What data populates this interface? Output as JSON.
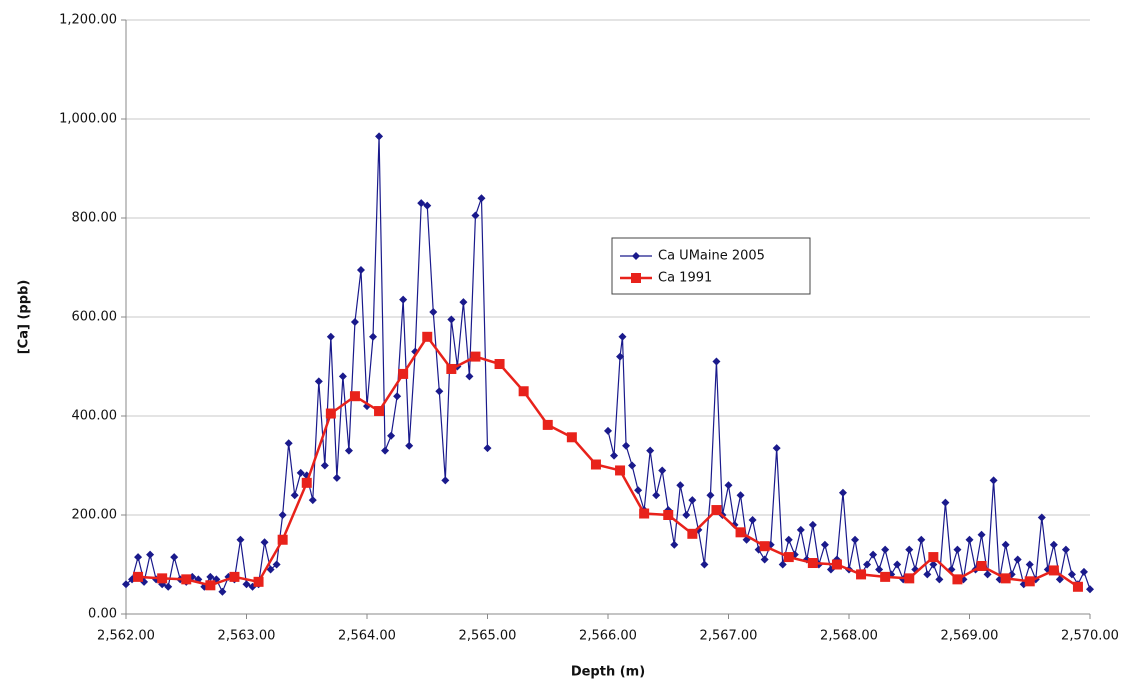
{
  "chart_data": {
    "type": "line",
    "x_label": "Depth (m)",
    "y_label": "[Ca] (ppb)",
    "xlim": [
      2562,
      2570
    ],
    "ylim": [
      0,
      1200
    ],
    "xticks": [
      {
        "value": 2562,
        "label": "2,562.00"
      },
      {
        "value": 2563,
        "label": "2,563.00"
      },
      {
        "value": 2564,
        "label": "2,564.00"
      },
      {
        "value": 2565,
        "label": "2,565.00"
      },
      {
        "value": 2566,
        "label": "2,566.00"
      },
      {
        "value": 2567,
        "label": "2,567.00"
      },
      {
        "value": 2568,
        "label": "2,568.00"
      },
      {
        "value": 2569,
        "label": "2,569.00"
      },
      {
        "value": 2570,
        "label": "2,570.00"
      }
    ],
    "yticks": [
      {
        "value": 0,
        "label": "0.00"
      },
      {
        "value": 200,
        "label": "200.00"
      },
      {
        "value": 400,
        "label": "400.00"
      },
      {
        "value": 600,
        "label": "600.00"
      },
      {
        "value": 800,
        "label": "800.00"
      },
      {
        "value": 1000,
        "label": "1,000.00"
      },
      {
        "value": 1200,
        "label": "1,200.00"
      }
    ],
    "grid": true,
    "series": [
      {
        "name": "Ca UMaine 2005",
        "color": "#1a1a8c",
        "marker": "diamond",
        "x": [
          2562.0,
          2562.05,
          2562.1,
          2562.15,
          2562.2,
          2562.25,
          2562.3,
          2562.35,
          2562.4,
          2562.45,
          2562.5,
          2562.55,
          2562.6,
          2562.65,
          2562.7,
          2562.75,
          2562.8,
          2562.85,
          2562.9,
          2562.95,
          2563.0,
          2563.05,
          2563.1,
          2563.15,
          2563.2,
          2563.25,
          2563.3,
          2563.35,
          2563.4,
          2563.45,
          2563.5,
          2563.55,
          2563.6,
          2563.65,
          2563.7,
          2563.75,
          2563.8,
          2563.85,
          2563.9,
          2563.95,
          2564.0,
          2564.05,
          2564.1,
          2564.15,
          2564.2,
          2564.25,
          2564.3,
          2564.35,
          2564.4,
          2564.45,
          2564.5,
          2564.55,
          2564.6,
          2564.65,
          2564.7,
          2564.75,
          2564.8,
          2564.85,
          2564.9,
          2564.95,
          2565.0,
          2565.5,
          2566.0,
          2566.05,
          2566.1,
          2566.12,
          2566.15,
          2566.2,
          2566.25,
          2566.3,
          2566.35,
          2566.4,
          2566.45,
          2566.5,
          2566.55,
          2566.6,
          2566.65,
          2566.7,
          2566.75,
          2566.8,
          2566.85,
          2566.9,
          2566.95,
          2567.0,
          2567.05,
          2567.1,
          2567.15,
          2567.2,
          2567.25,
          2567.3,
          2567.35,
          2567.4,
          2567.45,
          2567.5,
          2567.55,
          2567.6,
          2567.65,
          2567.7,
          2567.75,
          2567.8,
          2567.85,
          2567.9,
          2567.95,
          2568.0,
          2568.05,
          2568.1,
          2568.15,
          2568.2,
          2568.25,
          2568.3,
          2568.35,
          2568.4,
          2568.45,
          2568.5,
          2568.55,
          2568.6,
          2568.65,
          2568.7,
          2568.75,
          2568.8,
          2568.85,
          2568.9,
          2568.95,
          2569.0,
          2569.05,
          2569.1,
          2569.15,
          2569.2,
          2569.25,
          2569.3,
          2569.35,
          2569.4,
          2569.45,
          2569.5,
          2569.55,
          2569.6,
          2569.65,
          2569.7,
          2569.75,
          2569.8,
          2569.85,
          2569.9,
          2569.95,
          2570.0
        ],
        "values": [
          60,
          70,
          115,
          65,
          120,
          70,
          60,
          55,
          115,
          70,
          65,
          75,
          70,
          55,
          75,
          70,
          45,
          75,
          70,
          150,
          60,
          55,
          60,
          145,
          90,
          100,
          200,
          345,
          240,
          285,
          280,
          230,
          470,
          300,
          560,
          275,
          480,
          330,
          590,
          695,
          420,
          560,
          965,
          330,
          360,
          440,
          635,
          340,
          530,
          830,
          825,
          610,
          450,
          270,
          595,
          500,
          630,
          480,
          805,
          840,
          335,
          null,
          370,
          320,
          520,
          560,
          340,
          300,
          250,
          210,
          330,
          240,
          290,
          210,
          140,
          260,
          200,
          230,
          170,
          100,
          240,
          510,
          200,
          260,
          180,
          240,
          150,
          190,
          130,
          110,
          140,
          335,
          100,
          150,
          120,
          170,
          110,
          180,
          100,
          140,
          90,
          110,
          245,
          90,
          150,
          80,
          100,
          120,
          90,
          130,
          80,
          100,
          70,
          130,
          90,
          150,
          80,
          100,
          70,
          225,
          90,
          130,
          70,
          150,
          90,
          160,
          80,
          270,
          70,
          140,
          80,
          110,
          60,
          100,
          70,
          195,
          90,
          140,
          70,
          130,
          80,
          60,
          85,
          50
        ]
      },
      {
        "name": "Ca 1991",
        "color": "#e8221b",
        "marker": "square",
        "x": [
          2562.1,
          2562.3,
          2562.5,
          2562.7,
          2562.9,
          2563.1,
          2563.3,
          2563.5,
          2563.7,
          2563.9,
          2564.1,
          2564.3,
          2564.5,
          2564.7,
          2564.9,
          2565.1,
          2565.3,
          2565.5,
          2565.7,
          2565.9,
          2566.1,
          2566.3,
          2566.5,
          2566.7,
          2566.9,
          2567.1,
          2567.3,
          2567.5,
          2567.7,
          2567.9,
          2568.1,
          2568.3,
          2568.5,
          2568.7,
          2568.9,
          2569.1,
          2569.3,
          2569.5,
          2569.7,
          2569.9
        ],
        "values": [
          75,
          72,
          70,
          58,
          75,
          65,
          150,
          265,
          405,
          440,
          410,
          485,
          560,
          495,
          520,
          505,
          450,
          382,
          357,
          302,
          290,
          203,
          200,
          162,
          210,
          165,
          137,
          115,
          103,
          100,
          80,
          75,
          72,
          115,
          70,
          97,
          72,
          66,
          88,
          55
        ]
      }
    ]
  }
}
